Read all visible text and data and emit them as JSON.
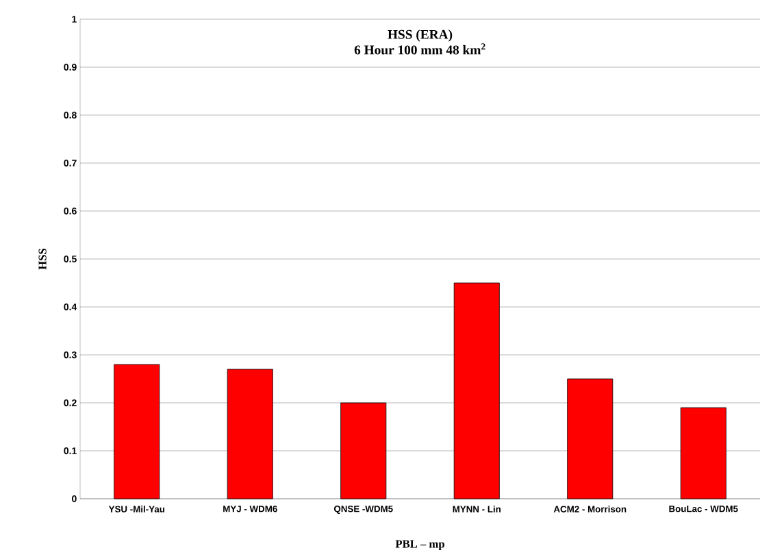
{
  "chart_data": {
    "type": "bar",
    "title": "HSS (ERA)",
    "subtitle": "6 Hour 100 mm 48 km$^{2}$",
    "xlabel": "PBL – mp",
    "ylabel": "HSS",
    "categories": [
      "YSU -Mil-Yau",
      "MYJ - WDM6",
      "QNSE -WDM5",
      "MYNN - Lin",
      "ACM2 - Morrison",
      "BouLac - WDM5"
    ],
    "values": [
      0.28,
      0.27,
      0.2,
      0.45,
      0.25,
      0.19
    ],
    "color": "#ff0000",
    "ylim": [
      0,
      1
    ],
    "yticks": [
      0,
      0.1,
      0.2,
      0.3,
      0.4,
      0.5,
      0.6,
      0.7,
      0.8,
      0.9,
      1
    ],
    "grid": "y"
  }
}
